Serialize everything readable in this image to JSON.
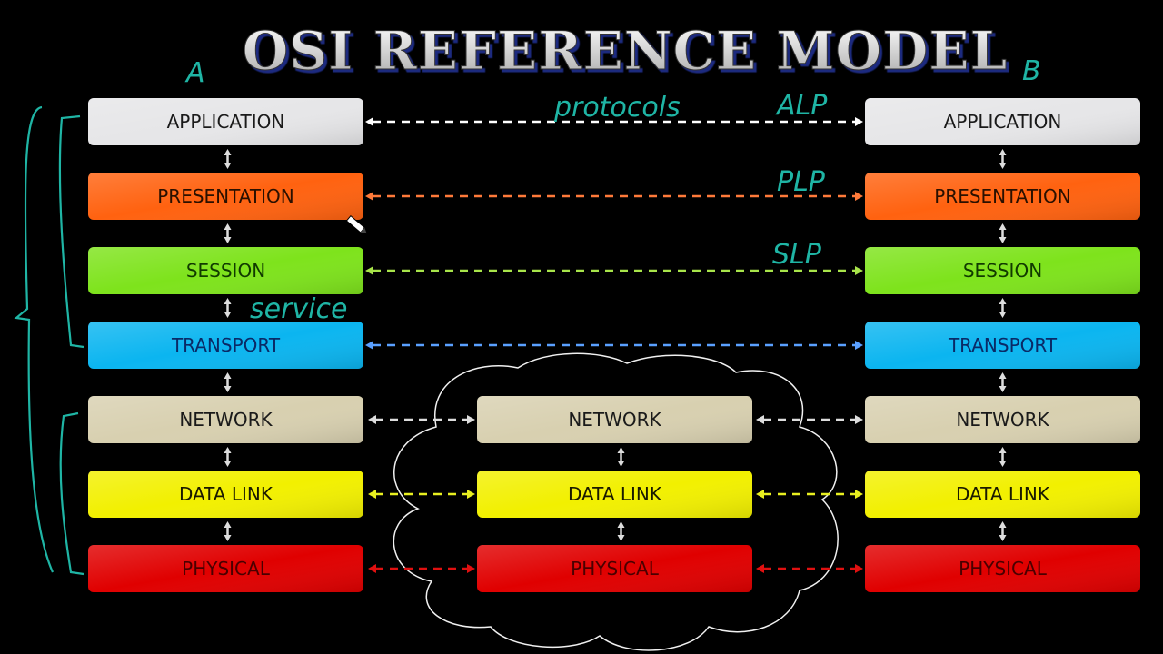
{
  "title": "OSI REFERENCE MODEL",
  "layers": [
    {
      "label": "APPLICATION",
      "color": "#e6e6e8",
      "text_color": "#1a1a1a",
      "arrow_color": "#ffffff",
      "router": false
    },
    {
      "label": "PRESENTATION",
      "color": "#ff6210",
      "text_color": "#2a1000",
      "arrow_color": "#ff7a3a",
      "router": false
    },
    {
      "label": "SESSION",
      "color": "#7ee31c",
      "text_color": "#103a00",
      "arrow_color": "#a8e44a",
      "router": false
    },
    {
      "label": "TRANSPORT",
      "color": "#0bb5f0",
      "text_color": "#0a2a66",
      "arrow_color": "#5aa0ff",
      "router": false
    },
    {
      "label": "NETWORK",
      "color": "#d8d0b0",
      "text_color": "#1a1a1a",
      "arrow_color": "#dddddd",
      "router": true
    },
    {
      "label": "DATA LINK",
      "color": "#f2f000",
      "text_color": "#1a1a00",
      "arrow_color": "#e8ef20",
      "router": true
    },
    {
      "label": "PHYSICAL",
      "color": "#e00000",
      "text_color": "#4a0000",
      "arrow_color": "#e01010",
      "router": true
    }
  ],
  "annotations": {
    "host_a": "A",
    "host_b": "B",
    "protocols": "protocols",
    "alp": "ALP",
    "plp": "PLP",
    "slp": "SLP",
    "service": "service",
    "ink_color": "#1fb5a5"
  }
}
